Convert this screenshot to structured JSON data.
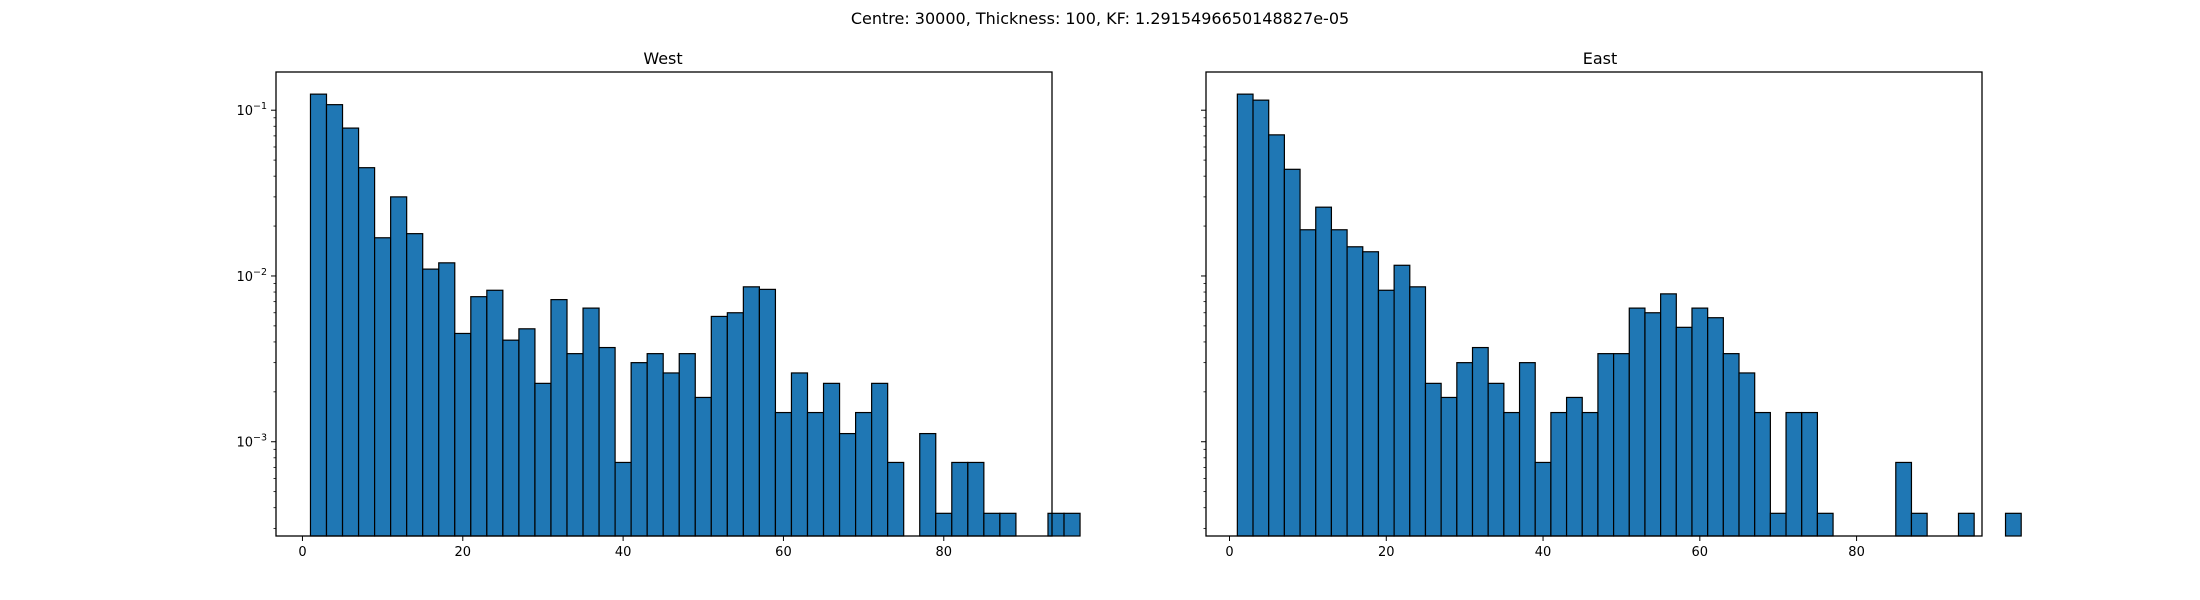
{
  "figure": {
    "suptitle": "Centre: 30000, Thickness: 100, KF: 1.2915496650148827e-05"
  },
  "chart_data": [
    {
      "type": "bar",
      "subtype": "histogram",
      "title": "West",
      "xlabel": "",
      "ylabel": "",
      "yscale": "log",
      "xlim": [
        -3.3,
        93.5
      ],
      "ylim": [
        0.00027,
        0.17
      ],
      "x_ticks": [
        "0",
        "20",
        "40",
        "60",
        "80"
      ],
      "x_tick_values": [
        0,
        20,
        40,
        60,
        80
      ],
      "y_ticks": [
        {
          "base": "10",
          "exp": "−1",
          "value": 0.1
        },
        {
          "base": "10",
          "exp": "−2",
          "value": 0.01
        },
        {
          "base": "10",
          "exp": "−3",
          "value": 0.001
        }
      ],
      "bar_color": "#1f77b4",
      "edge_color": "#000000",
      "bin_start": 1,
      "bin_width": 2,
      "values": [
        0.125,
        0.108,
        0.078,
        0.045,
        0.017,
        0.03,
        0.018,
        0.011,
        0.012,
        0.0045,
        0.0075,
        0.0082,
        0.0041,
        0.0048,
        0.00225,
        0.0072,
        0.0034,
        0.0064,
        0.0037,
        0.00075,
        0.003,
        0.0034,
        0.0026,
        0.0034,
        0.00185,
        0.0057,
        0.006,
        0.0086,
        0.0083,
        0.0015,
        0.0026,
        0.0015,
        0.00225,
        0.00112,
        0.0015,
        0.00225,
        0.00075,
        0,
        0.00112,
        0.00037,
        0.00075,
        0.00075,
        0.00037,
        0.00037,
        0,
        0,
        0.00037,
        0.00037
      ]
    },
    {
      "type": "bar",
      "subtype": "histogram",
      "title": "East",
      "xlabel": "",
      "ylabel": "",
      "yscale": "log",
      "xlim": [
        -3.0,
        96.0
      ],
      "ylim": [
        0.00027,
        0.17
      ],
      "x_ticks": [
        "0",
        "20",
        "40",
        "60",
        "80"
      ],
      "x_tick_values": [
        0,
        20,
        40,
        60,
        80
      ],
      "y_ticks": [],
      "bar_color": "#1f77b4",
      "edge_color": "#000000",
      "bin_start": 1,
      "bin_width": 2,
      "values": [
        0.125,
        0.115,
        0.071,
        0.044,
        0.019,
        0.026,
        0.019,
        0.015,
        0.014,
        0.0082,
        0.0116,
        0.0086,
        0.00225,
        0.00185,
        0.003,
        0.0037,
        0.00225,
        0.0015,
        0.003,
        0.00075,
        0.0015,
        0.00185,
        0.0015,
        0.0034,
        0.0034,
        0.0064,
        0.006,
        0.0078,
        0.0049,
        0.0064,
        0.0056,
        0.0034,
        0.0026,
        0.0015,
        0.00037,
        0.0015,
        0.0015,
        0.00037,
        0,
        0,
        0,
        0,
        0.00075,
        0.00037,
        0,
        0,
        0.00037,
        0,
        0,
        0.00037
      ]
    }
  ]
}
